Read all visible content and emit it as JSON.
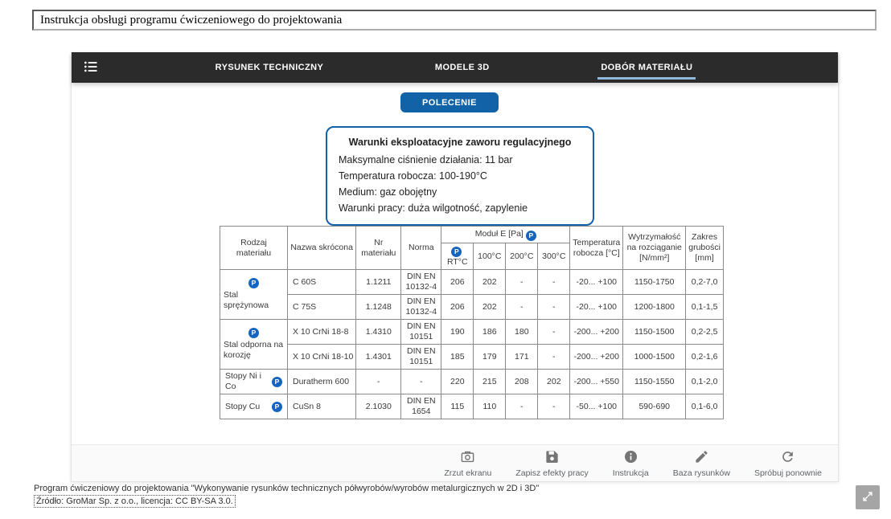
{
  "title_bar": {
    "value": "Instrukcja obsługi programu ćwiczeniowego do projektowania"
  },
  "navbar": {
    "tabs": [
      {
        "id": "rysunek-techniczny",
        "label": "RYSUNEK TECHNICZNY",
        "active": false
      },
      {
        "id": "modele-3d",
        "label": "MODELE 3D",
        "active": false
      },
      {
        "id": "dobor-materialu",
        "label": "DOBÓR MATERIAŁU",
        "active": true
      }
    ]
  },
  "command_button": {
    "label": "POLECENIE"
  },
  "conditions_box": {
    "title": "Warunki eksploatacyjne zaworu regulacyjnego",
    "lines": [
      "Maksymalne ciśnienie działania: 11 bar",
      "Temperatura robocza: 100-190°C",
      "Medium: gaz obojętny",
      "Warunki pracy: duża wilgotność, zapylenie"
    ]
  },
  "table": {
    "p_marker": "P",
    "headers": {
      "rodzaj": "Rodzaj materiału",
      "nazwa": "Nazwa skrócona",
      "nr": "Nr materiału",
      "norma": "Norma",
      "modul": "Moduł E [Pa]",
      "sub": [
        "RT°C",
        "100°C",
        "200°C",
        "300°C"
      ],
      "temperatura": "Temperatura robocza [°C]",
      "wytrzymalosc": "Wytrzymałość na rozciąganie [N/mm²]",
      "zakres": "Zakres grubości [mm]"
    },
    "groups": [
      {
        "label": "Stal sprężynowa",
        "icon_position": "above",
        "rows": [
          [
            "C 60S",
            "1.1211",
            "DIN EN 10132-4",
            "206",
            "202",
            "-",
            "-",
            "-20... +100",
            "1150-1750",
            "0,2-7,0"
          ],
          [
            "C 75S",
            "1.1248",
            "DIN EN 10132-4",
            "206",
            "202",
            "-",
            "-",
            "-20... +100",
            "1200-1800",
            "0,1-1,5"
          ]
        ]
      },
      {
        "label": "Stal odporna na korozję",
        "icon_position": "above",
        "rows": [
          [
            "X 10 CrNi 18-8",
            "1.4310",
            "DIN EN 10151",
            "190",
            "186",
            "180",
            "-",
            "-200... +200",
            "1150-1500",
            "0,2-2,5"
          ],
          [
            "X 10 CrNi 18-10",
            "1.4301",
            "DIN EN 10151",
            "185",
            "179",
            "171",
            "-",
            "-200... +200",
            "1000-1500",
            "0,2-1,6"
          ]
        ]
      },
      {
        "label": "Stopy Ni i Co",
        "icon_position": "right",
        "rows": [
          [
            "Duratherm 600",
            "-",
            "-",
            "220",
            "215",
            "208",
            "202",
            "-200... +550",
            "1150-1550",
            "0,1-2,0"
          ]
        ]
      },
      {
        "label": "Stopy Cu",
        "icon_position": "right",
        "rows": [
          [
            "CuSn 8",
            "2.1030",
            "DIN EN 1654",
            "115",
            "110",
            "-",
            "-",
            "-50... +100",
            "590-690",
            "0,1-6,0"
          ]
        ]
      }
    ]
  },
  "toolbar": {
    "items": [
      {
        "icon": "camera-icon",
        "label": "Zrzut ekranu"
      },
      {
        "icon": "save-icon",
        "label": "Zapisz efekty pracy"
      },
      {
        "icon": "info-icon",
        "label": "Instrukcja"
      },
      {
        "icon": "pencil-icon",
        "label": "Baza rysunków"
      },
      {
        "icon": "refresh-icon",
        "label": "Spróbuj ponownie"
      }
    ]
  },
  "credits": {
    "line1": "Program ćwiczeniowy do projektowania \"Wykonywanie rysunków technicznych półwyrobów/wyrobów metalurgicznych w 2D i 3D\"",
    "line2": "Źródło: GroMar Sp. z o.o., licencja: CC BY-SA 3.0."
  },
  "colors": {
    "accent_blue": "#1262a8",
    "tab_underline": "#8fb8da",
    "p_badge_blue": "#1565c0",
    "navbar_bg": "#2b2b2b",
    "icon_gray": "#757575"
  }
}
